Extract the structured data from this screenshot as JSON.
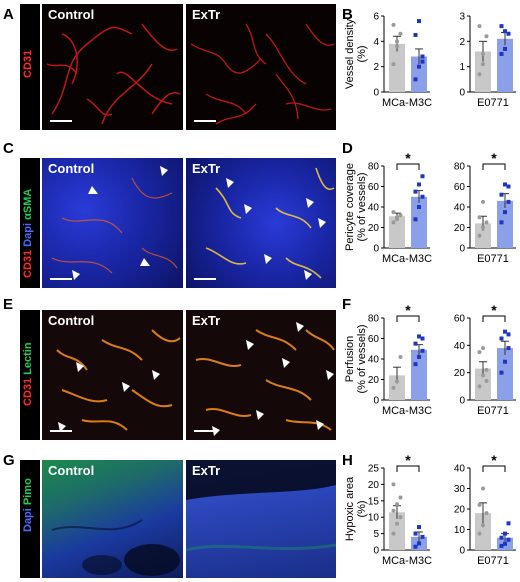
{
  "panels": {
    "A": {
      "letter": "A",
      "stain": [
        {
          "text": "CD31",
          "color": "#ff2a2a"
        }
      ]
    },
    "B": {
      "letter": "B"
    },
    "C": {
      "letter": "C",
      "stain": [
        {
          "text": "CD31 ",
          "color": "#ff2a2a"
        },
        {
          "text": "Dapi ",
          "color": "#4a6bff"
        },
        {
          "text": "αSMA",
          "color": "#22cc55"
        }
      ]
    },
    "D": {
      "letter": "D"
    },
    "E": {
      "letter": "E",
      "stain": [
        {
          "text": "CD31 ",
          "color": "#ff2a2a"
        },
        {
          "text": "Lectin",
          "color": "#22cc55"
        }
      ]
    },
    "F": {
      "letter": "F"
    },
    "G": {
      "letter": "G",
      "stain": [
        {
          "text": "Dapi ",
          "color": "#4a6bff"
        },
        {
          "text": "Pimo",
          "color": "#22cc55"
        }
      ]
    },
    "H": {
      "letter": "H"
    }
  },
  "conditions": {
    "control": "Control",
    "extr": "ExTr"
  },
  "colors": {
    "control_bar": "#c8c8c8",
    "control_dot": "#9a9a9a",
    "extr_bar": "#8aa0e8",
    "extr_dot": "#1f36c4"
  },
  "chart_data": [
    {
      "type": "bar",
      "id": "B",
      "ylabel": "Vessel density (%)",
      "ylabel_lines": [
        "Vessel density",
        "(%)"
      ],
      "ylim": [
        0,
        6
      ],
      "yticks": [
        0,
        2,
        4,
        6
      ],
      "xlabel": "MCa-M3C",
      "categories": [
        "Control",
        "ExTr"
      ],
      "values": [
        3.8,
        2.8
      ],
      "errors": [
        0.6,
        0.6
      ],
      "points": [
        [
          2.2,
          3.6,
          4.6,
          5.3,
          4.0
        ],
        [
          1.0,
          2.0,
          2.8,
          4.5,
          5.6,
          2.4
        ]
      ],
      "significant": false
    },
    {
      "type": "bar",
      "id": "B",
      "ylabel": "",
      "ylim": [
        0,
        3
      ],
      "yticks": [
        0,
        1,
        2,
        3
      ],
      "xlabel": "E0771",
      "categories": [
        "Control",
        "ExTr"
      ],
      "values": [
        1.6,
        2.1
      ],
      "errors": [
        0.4,
        0.25
      ],
      "points": [
        [
          0.7,
          1.1,
          2.2,
          2.6,
          1.5
        ],
        [
          1.5,
          1.7,
          2.3,
          2.6,
          2.4
        ]
      ],
      "significant": false
    },
    {
      "type": "bar",
      "id": "D",
      "ylabel": "Pericyte coverage (% of vessels)",
      "ylabel_lines": [
        "Pericyte coverage",
        "(% of vessels)"
      ],
      "ylim": [
        0,
        80
      ],
      "yticks": [
        0,
        20,
        40,
        60,
        80
      ],
      "xlabel": "MCa-M3C",
      "categories": [
        "Control",
        "ExTr"
      ],
      "values": [
        31,
        50
      ],
      "errors": [
        3,
        6
      ],
      "points": [
        [
          25,
          28,
          32,
          35,
          30
        ],
        [
          28,
          40,
          50,
          55,
          62,
          70
        ]
      ],
      "significant": true,
      "sig_label": "*"
    },
    {
      "type": "bar",
      "id": "D",
      "ylabel": "",
      "ylim": [
        0,
        80
      ],
      "yticks": [
        0,
        20,
        40,
        60,
        80
      ],
      "xlabel": "E0771",
      "categories": [
        "Control",
        "ExTr"
      ],
      "values": [
        24,
        46
      ],
      "errors": [
        7,
        7
      ],
      "points": [
        [
          12,
          20,
          25,
          30,
          45
        ],
        [
          25,
          35,
          45,
          52,
          62,
          60
        ]
      ],
      "significant": true,
      "sig_label": "*"
    },
    {
      "type": "bar",
      "id": "F",
      "ylabel": "Perfusion (% of vessels)",
      "ylabel_lines": [
        "Perfusion",
        "(% of vessels)"
      ],
      "ylim": [
        0,
        80
      ],
      "yticks": [
        0,
        20,
        40,
        60,
        80
      ],
      "xlabel": "MCa-M3C",
      "categories": [
        "Control",
        "ExTr"
      ],
      "values": [
        24,
        49
      ],
      "errors": [
        8,
        5
      ],
      "points": [
        [
          12,
          18,
          42
        ],
        [
          35,
          42,
          48,
          55,
          62,
          60
        ]
      ],
      "significant": true,
      "sig_label": "*"
    },
    {
      "type": "bar",
      "id": "F",
      "ylabel": "",
      "ylim": [
        0,
        60
      ],
      "yticks": [
        0,
        20,
        40,
        60
      ],
      "xlabel": "E0771",
      "categories": [
        "Control",
        "ExTr"
      ],
      "values": [
        23,
        38
      ],
      "errors": [
        5,
        5
      ],
      "points": [
        [
          10,
          18,
          22,
          35,
          38,
          14
        ],
        [
          20,
          28,
          38,
          45,
          50,
          48
        ]
      ],
      "significant": true,
      "sig_label": "*"
    },
    {
      "type": "bar",
      "id": "H",
      "ylabel": "Hypoxic area (%)",
      "ylabel_lines": [
        "Hypoxic area",
        "(%)"
      ],
      "ylim": [
        0,
        25
      ],
      "yticks": [
        0,
        5,
        10,
        15,
        20,
        25
      ],
      "xlabel": "MCa-M3C",
      "categories": [
        "Control",
        "ExTr"
      ],
      "values": [
        11.5,
        4
      ],
      "errors": [
        2,
        1.5
      ],
      "points": [
        [
          5,
          8,
          10,
          12,
          14,
          16,
          20
        ],
        [
          1,
          2,
          4,
          5,
          7
        ]
      ],
      "significant": true,
      "sig_label": "*"
    },
    {
      "type": "bar",
      "id": "H",
      "ylabel": "",
      "ylim": [
        0,
        40
      ],
      "yticks": [
        0,
        10,
        20,
        30,
        40
      ],
      "xlabel": "E0771",
      "categories": [
        "Control",
        "ExTr"
      ],
      "values": [
        18,
        6
      ],
      "errors": [
        5,
        2
      ],
      "points": [
        [
          8,
          12,
          18,
          22,
          30
        ],
        [
          2,
          3,
          5,
          6,
          8,
          13
        ]
      ],
      "significant": true,
      "sig_label": "*"
    }
  ]
}
